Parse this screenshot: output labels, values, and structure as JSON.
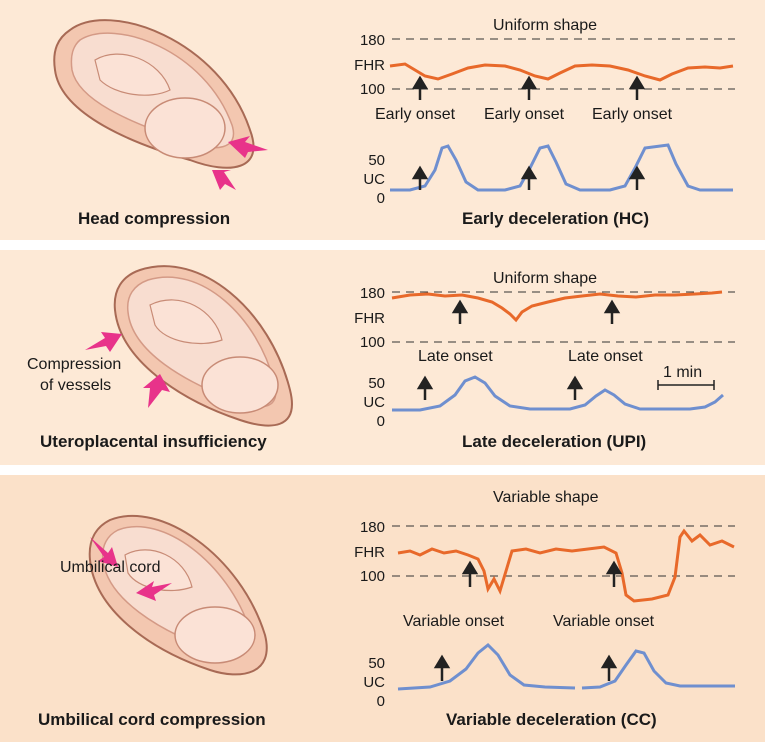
{
  "panels": [
    {
      "left_caption": "Head compression",
      "right_caption": "Early deceleration (HC)",
      "shape_label": "Uniform   shape",
      "onset_label": "Early onset",
      "fhr_ticks": [
        "180",
        "FHR",
        "100"
      ],
      "uc_ticks": [
        "50",
        "UC",
        "0"
      ],
      "arrow_labels": []
    },
    {
      "left_caption": "Uteroplacental insufficiency",
      "right_caption": "Late deceleration (UPI)",
      "shape_label": "Uniform   shape",
      "onset_label": "Late onset",
      "fhr_ticks": [
        "180",
        "FHR",
        "100"
      ],
      "uc_ticks": [
        "50",
        "UC",
        "0"
      ],
      "scale_label": "1 min",
      "arrow_labels": [
        "Compression",
        "of vessels"
      ]
    },
    {
      "left_caption": "Umbilical cord compression",
      "right_caption": "Variable deceleration (CC)",
      "shape_label": "Variable   shape",
      "onset_label": "Variable onset",
      "fhr_ticks": [
        "180",
        "FHR",
        "100"
      ],
      "uc_ticks": [
        "50",
        "UC",
        "0"
      ],
      "arrow_labels": [
        "Umbilical cord"
      ]
    }
  ],
  "colors": {
    "fhr_trace": "#e8692a",
    "uc_trace": "#6f8fcf",
    "pressure_arrow": "#e8338a",
    "panel_bg": "#fde9d6",
    "panel_bg_last": "#fbe1c9"
  },
  "chart_data": [
    {
      "type": "line",
      "title": "Early deceleration (HC)",
      "fhr_axis": {
        "ticks": [
          100,
          180
        ],
        "label": "FHR"
      },
      "uc_axis": {
        "ticks": [
          0,
          50
        ],
        "label": "UC"
      },
      "onsets": [
        "Early onset",
        "Early onset",
        "Early onset"
      ]
    },
    {
      "type": "line",
      "title": "Late deceleration (UPI)",
      "fhr_axis": {
        "ticks": [
          100,
          180
        ],
        "label": "FHR"
      },
      "uc_axis": {
        "ticks": [
          0,
          50
        ],
        "label": "UC"
      },
      "onsets": [
        "Late onset",
        "Late onset"
      ],
      "scale": "1 min"
    },
    {
      "type": "line",
      "title": "Variable deceleration (CC)",
      "fhr_axis": {
        "ticks": [
          100,
          180
        ],
        "label": "FHR"
      },
      "uc_axis": {
        "ticks": [
          0,
          50
        ],
        "label": "UC"
      },
      "onsets": [
        "Variable onset",
        "Variable onset"
      ]
    }
  ]
}
